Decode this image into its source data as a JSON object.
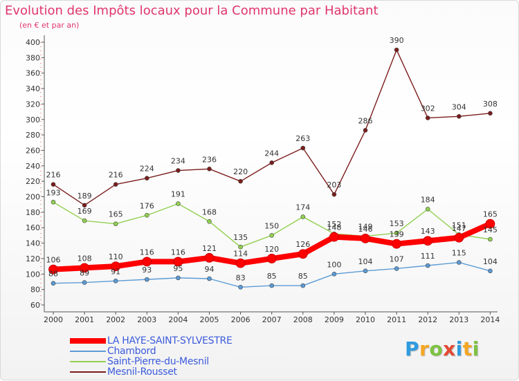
{
  "header": {
    "title": "Evolution des Impôts locaux pour la Commune par Habitant",
    "subtitle": "(en € et par an)"
  },
  "logo": {
    "text": "Proxiti",
    "colors": [
      "#2e9be0",
      "#f5a623",
      "#7dc242",
      "#e24a33",
      "#2e9be0",
      "#f5a623",
      "#7dc242"
    ]
  },
  "chart_data": {
    "type": "line",
    "x": [
      "2000",
      "2001",
      "2002",
      "2003",
      "2004",
      "2005",
      "2006",
      "2007",
      "2008",
      "2009",
      "2010",
      "2011",
      "2012",
      "2013",
      "2014"
    ],
    "ylim": [
      60,
      400
    ],
    "yticks": [
      60,
      80,
      100,
      120,
      140,
      160,
      180,
      200,
      220,
      240,
      260,
      280,
      300,
      320,
      340,
      360,
      380,
      400
    ],
    "grid": false,
    "legend_position": "bottom-left",
    "series": [
      {
        "name": "LA HAYE-SAINT-SYLVESTRE",
        "color": "#ff0000",
        "bold": true,
        "values": [
          106,
          108,
          110,
          116,
          116,
          121,
          114,
          120,
          126,
          148,
          146,
          139,
          143,
          147,
          165
        ]
      },
      {
        "name": "Chambord",
        "color": "#5b9bd5",
        "bold": false,
        "values": [
          88,
          89,
          91,
          93,
          95,
          94,
          83,
          85,
          85,
          100,
          104,
          107,
          111,
          115,
          104
        ]
      },
      {
        "name": "Saint-Pierre-du-Mesnil",
        "color": "#92d050",
        "bold": false,
        "values": [
          193,
          169,
          165,
          176,
          191,
          168,
          135,
          150,
          174,
          152,
          149,
          153,
          184,
          151,
          145
        ]
      },
      {
        "name": "Mesnil-Rousset",
        "color": "#7b1c1c",
        "bold": false,
        "values": [
          216,
          189,
          216,
          224,
          234,
          236,
          220,
          244,
          263,
          203,
          286,
          390,
          302,
          304,
          308
        ]
      }
    ]
  }
}
